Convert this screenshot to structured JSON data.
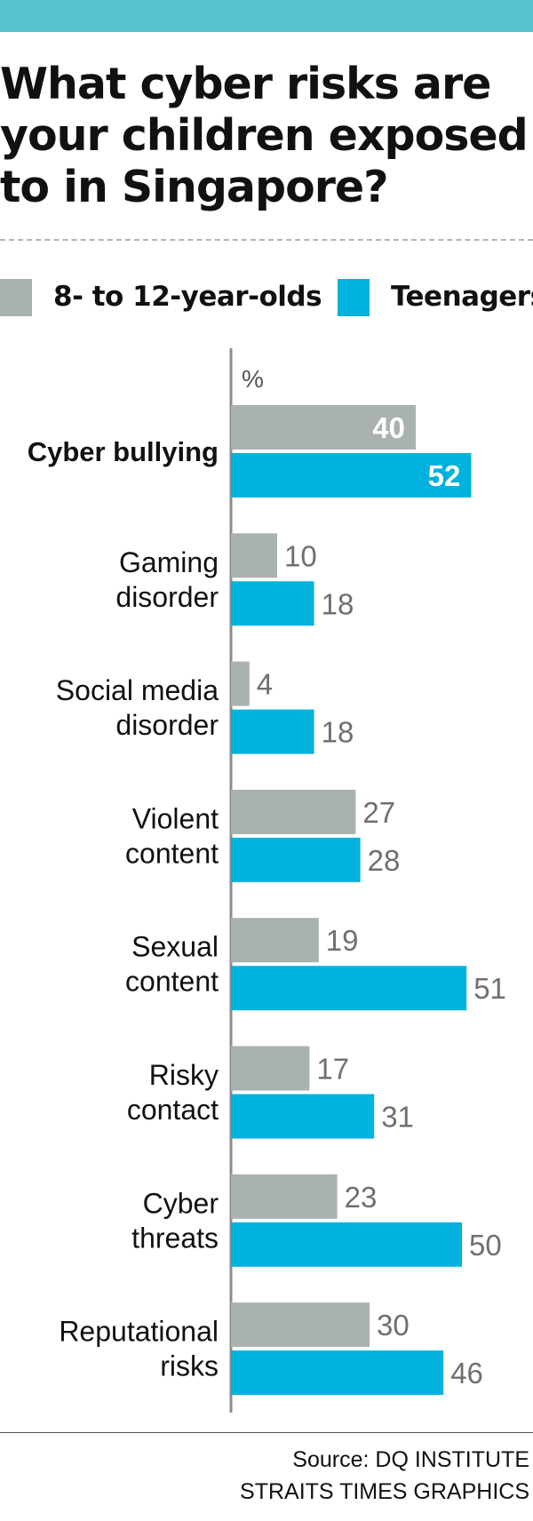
{
  "title_lines": [
    "What cyber risks are",
    "your children exposed",
    "to in Singapore?"
  ],
  "legend": [
    "8- to 12-year-olds",
    "Teenagers"
  ],
  "unit": "%",
  "colors": {
    "band": "#58c3cd",
    "kids": "#a9b2b1",
    "teens": "#00b2dd",
    "axis": "#8c8c8c",
    "value_text": "#6f6f6f"
  },
  "chart_data": {
    "type": "bar",
    "orientation": "horizontal",
    "title": "What cyber risks are your children exposed to in Singapore?",
    "ylabel": "%",
    "xlim": [
      0,
      60
    ],
    "categories": [
      [
        "Cyber bullying"
      ],
      [
        "Gaming",
        "disorder"
      ],
      [
        "Social media",
        "disorder"
      ],
      [
        "Violent",
        "content"
      ],
      [
        "Sexual",
        "content"
      ],
      [
        "Risky",
        "contact"
      ],
      [
        "Cyber",
        "threats"
      ],
      [
        "Reputational",
        "risks"
      ]
    ],
    "highlighted_category": 0,
    "series": [
      {
        "name": "8- to 12-year-olds",
        "values": [
          40,
          10,
          4,
          27,
          19,
          17,
          23,
          30
        ]
      },
      {
        "name": "Teenagers",
        "values": [
          52,
          18,
          18,
          28,
          51,
          31,
          50,
          46
        ]
      }
    ]
  },
  "footer": [
    "Source: DQ INSTITUTE",
    "STRAITS TIMES GRAPHICS"
  ]
}
